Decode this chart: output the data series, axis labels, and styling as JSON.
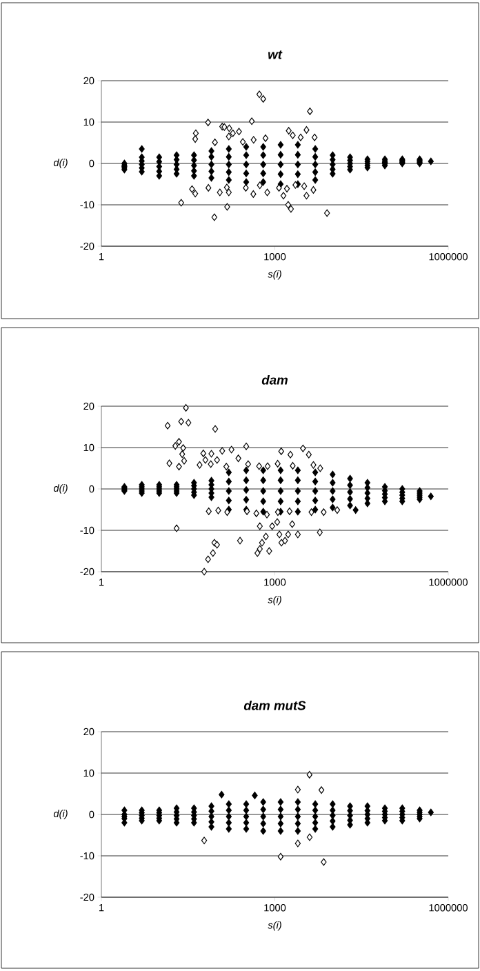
{
  "chart_data": [
    {
      "type": "scatter",
      "title": "wt",
      "xlabel": "s(i)",
      "ylabel": "d(i)",
      "xlim": [
        1,
        1000000
      ],
      "ylim": [
        -20,
        20
      ],
      "xticks": [
        1,
        1000,
        1000000
      ],
      "yticks": [
        -20,
        -10,
        0,
        10,
        20
      ],
      "log": "x",
      "grid": "y",
      "marker": "diamond",
      "series": [
        {
          "color": "#000000",
          "x": [
            2.5,
            2.5,
            2.5,
            2.5,
            2.5,
            5,
            5,
            5,
            5,
            5,
            10,
            10,
            10,
            10,
            10,
            20,
            20,
            20,
            20,
            20,
            40,
            40,
            40,
            40,
            40,
            80,
            80,
            80,
            80,
            80,
            160,
            160,
            160,
            160,
            160,
            320,
            320,
            320,
            320,
            320,
            630,
            630,
            630,
            630,
            630,
            1260,
            1260,
            1260,
            1260,
            1260,
            2500,
            2500,
            2500,
            2500,
            2500,
            5000,
            5000,
            5000,
            5000,
            5000,
            10000,
            10000,
            10000,
            10000,
            10000,
            20000,
            20000,
            20000,
            20000,
            20000,
            40000,
            40000,
            40000,
            40000,
            40000,
            80000,
            80000,
            80000,
            80000,
            80000,
            160000,
            160000,
            160000,
            160000,
            160000,
            320000,
            320000,
            320000,
            320000,
            320000,
            500000,
            5
          ],
          "values": [
            0,
            -0.4,
            -0.75,
            -1.1,
            -1.5,
            1.5,
            0.6,
            -0.25,
            -1.1,
            -2,
            1.5,
            0.4,
            -0.75,
            -1.9,
            -3,
            2,
            0.9,
            -0.25,
            -1.4,
            -2.5,
            2,
            0.8,
            -0.5,
            -1.8,
            -3,
            3,
            1.6,
            -0.25,
            -1.9,
            -3.5,
            3.5,
            1.6,
            -0.25,
            -2.1,
            -4,
            4,
            2,
            -0.25,
            -2.4,
            -4.5,
            4,
            2,
            -0.25,
            -2.4,
            -4.5,
            4.5,
            2.1,
            -0.25,
            -2.6,
            -5,
            4.5,
            2.1,
            -0.25,
            -2.6,
            -5,
            3.5,
            1.6,
            -0.25,
            -2.1,
            -4,
            2,
            0.9,
            -0.25,
            -1.4,
            -2.5,
            1.5,
            0.75,
            0,
            -0.75,
            -1.5,
            1,
            0.5,
            0,
            -0.5,
            -1,
            1,
            0.6,
            0.25,
            -0.1,
            -0.5,
            1,
            0.75,
            0.5,
            0.25,
            0,
            1,
            0.75,
            0.5,
            0.25,
            0,
            0.5,
            3.5
          ]
        },
        {
          "color": "#ffffff",
          "x": [
            540,
            630,
            70,
            400,
            123,
            134,
            163,
            240,
            188,
            43,
            42,
            92,
            160,
            280,
            430,
            690,
            37,
            42,
            71,
            112,
            148,
            160,
            315,
            425,
            550,
            740,
            4050,
            1740,
            2040,
            3530,
            2800,
            4870,
            1180,
            1620,
            1410,
            2270,
            3220,
            3530,
            4650,
            24,
            90,
            150,
            1700,
            1900,
            8000
          ],
          "values": [
            16.7,
            15.6,
            9.9,
            10.2,
            8.9,
            8.8,
            8.5,
            7.7,
            7.3,
            7.3,
            5.9,
            5.1,
            6.5,
            5.2,
            5.7,
            6.1,
            -6.2,
            -7.3,
            -5.9,
            -7,
            -5.8,
            -7,
            -5.9,
            -7.4,
            -5.3,
            -7,
            12.6,
            7.9,
            6.8,
            8.1,
            6.3,
            6.3,
            -5.9,
            -6.1,
            -7.8,
            -5.2,
            -5.5,
            -7.8,
            -6.4,
            -9.5,
            -13,
            -10.5,
            -10,
            -11,
            -12
          ]
        }
      ]
    },
    {
      "type": "scatter",
      "title": "dam",
      "xlabel": "s(i)",
      "ylabel": "d(i)",
      "xlim": [
        1,
        1000000
      ],
      "ylim": [
        -20,
        20
      ],
      "xticks": [
        1,
        1000,
        1000000
      ],
      "yticks": [
        -20,
        -10,
        0,
        10,
        20
      ],
      "log": "x",
      "grid": "y",
      "marker": "diamond",
      "series": [
        {
          "color": "#000000",
          "x": [
            2.5,
            2.5,
            2.5,
            2.5,
            2.5,
            5,
            5,
            5,
            5,
            5,
            10,
            10,
            10,
            10,
            10,
            20,
            20,
            20,
            20,
            20,
            40,
            40,
            40,
            40,
            40,
            80,
            80,
            80,
            80,
            80,
            160,
            160,
            160,
            160,
            160,
            320,
            320,
            320,
            320,
            320,
            630,
            630,
            630,
            630,
            630,
            1260,
            1260,
            1260,
            1260,
            1260,
            2500,
            2500,
            2500,
            2500,
            2500,
            5000,
            5000,
            5000,
            5000,
            5000,
            10000,
            10000,
            10000,
            10000,
            10000,
            20000,
            20000,
            20000,
            20000,
            20000,
            40000,
            40000,
            40000,
            40000,
            40000,
            80000,
            80000,
            80000,
            80000,
            80000,
            160000,
            160000,
            160000,
            160000,
            160000,
            320000,
            320000,
            320000,
            320000,
            320000,
            500000,
            25000
          ],
          "values": [
            0.5,
            0.3,
            0,
            -0.3,
            -0.5,
            1,
            0.5,
            0,
            -0.5,
            -1,
            1,
            0.5,
            0,
            -0.5,
            -1,
            1,
            0.5,
            0,
            -0.5,
            -1,
            1.5,
            0.8,
            0,
            -0.8,
            -1.5,
            2,
            1,
            0,
            -1,
            -2,
            4,
            1.8,
            -0.5,
            -2.8,
            -5,
            4.5,
            2.1,
            -0.25,
            -2.6,
            -5,
            4.5,
            2.1,
            -0.5,
            -3,
            -5.5,
            4.5,
            2.1,
            -0.5,
            -3,
            -5.5,
            4.5,
            2.1,
            -0.5,
            -3,
            -5.5,
            4,
            1.8,
            -0.5,
            -2.8,
            -5,
            3.5,
            1.5,
            -0.5,
            -2.5,
            -4.5,
            2.5,
            0.9,
            -0.75,
            -2.4,
            -4,
            1.5,
            0.3,
            -1,
            -2.3,
            -3.5,
            0.5,
            -0.4,
            -1.25,
            -2.1,
            -3,
            0,
            -0.8,
            -1.5,
            -2.3,
            -3,
            -0.5,
            -1,
            -1.5,
            -2,
            -2.5,
            -1.8,
            -5.1
          ]
        },
        {
          "color": "#ffffff",
          "x": [
            29,
            14,
            24,
            32,
            93,
            22,
            19,
            26,
            25,
            15,
            22,
            27,
            320,
            58,
            80,
            123,
            178,
            63,
            100,
            234,
            50,
            78,
            145,
            345,
            535,
            750,
            72,
            105,
            150,
            330,
            480,
            730,
            1290,
            1860,
            3070,
            3870,
            1120,
            2040,
            4650,
            6100,
            12000,
            7000,
            4300,
            1800,
            1130,
            20,
            60,
            70,
            85,
            90,
            100,
            250,
            500,
            550,
            600,
            700,
            800,
            1200,
            1300,
            1500,
            1700,
            2500,
            6000,
            550,
            900,
            1100,
            2000
          ],
          "values": [
            19.6,
            15.3,
            16.3,
            16,
            14.5,
            11.4,
            10.4,
            9.9,
            8.4,
            6.2,
            5.4,
            6.8,
            10.3,
            8.6,
            8.5,
            9.2,
            9.5,
            7,
            7,
            7.4,
            5.8,
            6,
            5.4,
            6,
            5.5,
            5.5,
            -5.4,
            -5.2,
            -5.6,
            -5.4,
            -5.9,
            -6.2,
            9.1,
            8.3,
            9.8,
            8.3,
            6.1,
            5.6,
            5.8,
            5,
            -5.1,
            -5.6,
            -5.6,
            -5.4,
            -5.6,
            -9.5,
            -20,
            -17,
            -15.5,
            -13,
            -13.5,
            -12.5,
            -15.5,
            -14.5,
            -13,
            -11.5,
            -15,
            -11,
            -13,
            -12.5,
            -11,
            -11,
            -10.5,
            -9,
            -9,
            -8,
            -8.5
          ]
        }
      ]
    },
    {
      "type": "scatter",
      "title": "dam mutS",
      "xlabel": "s(i)",
      "ylabel": "d(i)",
      "xlim": [
        1,
        1000000
      ],
      "ylim": [
        -20,
        20
      ],
      "xticks": [
        1,
        1000,
        1000000
      ],
      "yticks": [
        -20,
        -10,
        0,
        10,
        20
      ],
      "log": "x",
      "grid": "y",
      "marker": "diamond",
      "series": [
        {
          "color": "#000000",
          "x": [
            2.5,
            2.5,
            2.5,
            2.5,
            2.5,
            5,
            5,
            5,
            5,
            5,
            10,
            10,
            10,
            10,
            10,
            20,
            20,
            20,
            20,
            20,
            40,
            40,
            40,
            40,
            40,
            80,
            80,
            80,
            80,
            80,
            160,
            160,
            160,
            160,
            160,
            320,
            320,
            320,
            320,
            320,
            630,
            630,
            630,
            630,
            630,
            1260,
            1260,
            1260,
            1260,
            1260,
            2500,
            2500,
            2500,
            2500,
            2500,
            5000,
            5000,
            5000,
            5000,
            5000,
            10000,
            10000,
            10000,
            10000,
            10000,
            20000,
            20000,
            20000,
            20000,
            20000,
            40000,
            40000,
            40000,
            40000,
            40000,
            80000,
            80000,
            80000,
            80000,
            80000,
            160000,
            160000,
            160000,
            160000,
            160000,
            320000,
            320000,
            320000,
            320000,
            320000,
            500000,
            120,
            450
          ],
          "values": [
            1,
            0,
            -0.5,
            -1,
            -2,
            1,
            0.4,
            -0.25,
            -0.9,
            -1.5,
            1,
            0.4,
            -0.25,
            -0.9,
            -1.5,
            1.5,
            0.6,
            -0.25,
            -1.1,
            -2,
            1.5,
            0.6,
            -0.25,
            -1.1,
            -2,
            2,
            0.8,
            -0.5,
            -1.8,
            -3,
            2.5,
            1,
            -0.5,
            -2,
            -3.5,
            2.5,
            1,
            -0.5,
            -2,
            -3.5,
            3,
            1.2,
            -0.5,
            -2.2,
            -4,
            3,
            1.2,
            -0.5,
            -2.2,
            -4,
            3,
            1.2,
            -0.5,
            -2.2,
            -4,
            2.5,
            1,
            -0.5,
            -2,
            -3.5,
            2.5,
            1,
            -0.25,
            -1.6,
            -3,
            2,
            0.9,
            -0.25,
            -1.4,
            -2.5,
            2,
            0.9,
            0,
            -1,
            -2,
            1.5,
            0.75,
            0,
            -0.75,
            -1.5,
            1.5,
            0.75,
            0,
            -0.75,
            -1.5,
            1,
            0.5,
            0,
            -0.5,
            -1,
            0.5,
            4.8,
            4.6
          ]
        },
        {
          "color": "#ffffff",
          "x": [
            3980,
            2500,
            6400,
            60,
            1260,
            2500,
            4000,
            7000
          ],
          "values": [
            9.6,
            6,
            5.9,
            -6.3,
            -10.2,
            -7,
            -5.5,
            -11.5
          ]
        }
      ]
    }
  ]
}
